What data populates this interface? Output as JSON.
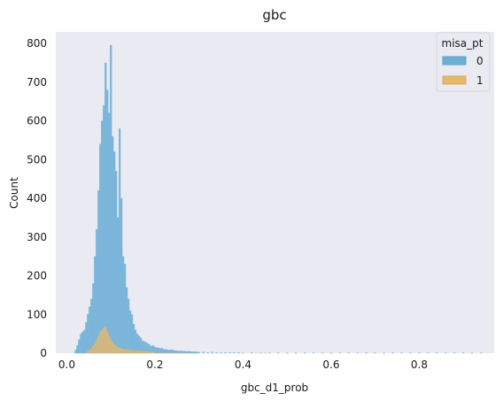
{
  "chart_data": {
    "type": "histogram",
    "title": "gbc",
    "xlabel": "gbc_d1_prob",
    "ylabel": "Count",
    "xlim": [
      -0.025,
      0.97
    ],
    "ylim": [
      0,
      830
    ],
    "x_ticks": [
      0.0,
      0.2,
      0.4,
      0.6,
      0.8
    ],
    "x_tick_labels": [
      "0.0",
      "0.2",
      "0.4",
      "0.6",
      "0.8"
    ],
    "y_ticks": [
      0,
      100,
      200,
      300,
      400,
      500,
      600,
      700,
      800
    ],
    "y_tick_labels": [
      "0",
      "100",
      "200",
      "300",
      "400",
      "500",
      "600",
      "700",
      "800"
    ],
    "grid": false,
    "background": "#eaeaf2",
    "legend": {
      "title": "misa_pt",
      "placement": "top-right"
    },
    "series": [
      {
        "name": "0",
        "color": "#6baed6",
        "points": [
          [
            0.02,
            8
          ],
          [
            0.024,
            20
          ],
          [
            0.028,
            35
          ],
          [
            0.032,
            50
          ],
          [
            0.036,
            55
          ],
          [
            0.04,
            60
          ],
          [
            0.044,
            80
          ],
          [
            0.048,
            100
          ],
          [
            0.052,
            120
          ],
          [
            0.056,
            140
          ],
          [
            0.06,
            180
          ],
          [
            0.064,
            250
          ],
          [
            0.068,
            320
          ],
          [
            0.072,
            420
          ],
          [
            0.076,
            540
          ],
          [
            0.08,
            600
          ],
          [
            0.084,
            640
          ],
          [
            0.088,
            750
          ],
          [
            0.092,
            680
          ],
          [
            0.096,
            620
          ],
          [
            0.1,
            795
          ],
          [
            0.104,
            560
          ],
          [
            0.108,
            520
          ],
          [
            0.112,
            470
          ],
          [
            0.116,
            350
          ],
          [
            0.12,
            580
          ],
          [
            0.124,
            400
          ],
          [
            0.128,
            250
          ],
          [
            0.132,
            230
          ],
          [
            0.136,
            170
          ],
          [
            0.14,
            140
          ],
          [
            0.144,
            110
          ],
          [
            0.148,
            100
          ],
          [
            0.152,
            75
          ],
          [
            0.156,
            60
          ],
          [
            0.16,
            50
          ],
          [
            0.164,
            45
          ],
          [
            0.168,
            40
          ],
          [
            0.172,
            32
          ],
          [
            0.176,
            30
          ],
          [
            0.18,
            28
          ],
          [
            0.184,
            25
          ],
          [
            0.188,
            22
          ],
          [
            0.192,
            18
          ],
          [
            0.196,
            20
          ],
          [
            0.2,
            16
          ],
          [
            0.204,
            14
          ],
          [
            0.208,
            14
          ],
          [
            0.212,
            12
          ],
          [
            0.216,
            13
          ],
          [
            0.22,
            10
          ],
          [
            0.224,
            10
          ],
          [
            0.228,
            9
          ],
          [
            0.232,
            8
          ],
          [
            0.236,
            9
          ],
          [
            0.24,
            8
          ],
          [
            0.244,
            7
          ],
          [
            0.248,
            6
          ],
          [
            0.252,
            6
          ],
          [
            0.256,
            5
          ],
          [
            0.26,
            6
          ],
          [
            0.264,
            5
          ],
          [
            0.268,
            5
          ],
          [
            0.272,
            4
          ],
          [
            0.276,
            5
          ],
          [
            0.28,
            4
          ],
          [
            0.284,
            4
          ],
          [
            0.288,
            3
          ],
          [
            0.292,
            4
          ],
          [
            0.296,
            3
          ],
          [
            0.3,
            3
          ],
          [
            0.31,
            3
          ],
          [
            0.32,
            2
          ],
          [
            0.33,
            3
          ],
          [
            0.34,
            2
          ],
          [
            0.35,
            2
          ],
          [
            0.36,
            2
          ],
          [
            0.37,
            2
          ],
          [
            0.38,
            2
          ],
          [
            0.39,
            2
          ],
          [
            0.4,
            1
          ],
          [
            0.42,
            2
          ],
          [
            0.44,
            1
          ],
          [
            0.46,
            1
          ],
          [
            0.48,
            1
          ],
          [
            0.5,
            1
          ],
          [
            0.52,
            1
          ],
          [
            0.54,
            1
          ],
          [
            0.56,
            1
          ],
          [
            0.58,
            1
          ],
          [
            0.6,
            1
          ],
          [
            0.62,
            1
          ],
          [
            0.64,
            1
          ],
          [
            0.66,
            1
          ],
          [
            0.68,
            1
          ],
          [
            0.7,
            1
          ],
          [
            0.72,
            1
          ],
          [
            0.74,
            1
          ],
          [
            0.76,
            1
          ],
          [
            0.78,
            1
          ],
          [
            0.8,
            1
          ],
          [
            0.82,
            1
          ],
          [
            0.84,
            1
          ],
          [
            0.86,
            1
          ],
          [
            0.88,
            1
          ],
          [
            0.9,
            1
          ],
          [
            0.92,
            1
          ],
          [
            0.94,
            1
          ]
        ]
      },
      {
        "name": "1",
        "color": "#e6b86a",
        "points": [
          [
            0.048,
            5
          ],
          [
            0.052,
            8
          ],
          [
            0.056,
            12
          ],
          [
            0.06,
            20
          ],
          [
            0.064,
            25
          ],
          [
            0.068,
            35
          ],
          [
            0.072,
            45
          ],
          [
            0.076,
            55
          ],
          [
            0.08,
            60
          ],
          [
            0.084,
            65
          ],
          [
            0.088,
            68
          ],
          [
            0.092,
            55
          ],
          [
            0.096,
            45
          ],
          [
            0.1,
            35
          ],
          [
            0.104,
            28
          ],
          [
            0.108,
            22
          ],
          [
            0.112,
            18
          ],
          [
            0.116,
            15
          ],
          [
            0.12,
            14
          ],
          [
            0.124,
            12
          ],
          [
            0.128,
            10
          ],
          [
            0.132,
            10
          ],
          [
            0.136,
            9
          ],
          [
            0.14,
            8
          ],
          [
            0.144,
            8
          ],
          [
            0.148,
            7
          ],
          [
            0.152,
            7
          ],
          [
            0.156,
            6
          ],
          [
            0.16,
            6
          ],
          [
            0.164,
            6
          ],
          [
            0.168,
            5
          ],
          [
            0.172,
            5
          ],
          [
            0.176,
            5
          ],
          [
            0.18,
            4
          ],
          [
            0.184,
            4
          ],
          [
            0.188,
            4
          ],
          [
            0.192,
            3
          ],
          [
            0.196,
            3
          ],
          [
            0.2,
            3
          ],
          [
            0.21,
            2
          ],
          [
            0.22,
            2
          ],
          [
            0.23,
            2
          ],
          [
            0.24,
            2
          ],
          [
            0.25,
            1
          ],
          [
            0.26,
            1
          ],
          [
            0.28,
            1
          ],
          [
            0.3,
            1
          ],
          [
            0.35,
            1
          ],
          [
            0.4,
            1
          ],
          [
            0.43,
            1
          ],
          [
            0.45,
            1
          ],
          [
            0.5,
            1
          ],
          [
            0.6,
            1
          ]
        ]
      }
    ]
  }
}
